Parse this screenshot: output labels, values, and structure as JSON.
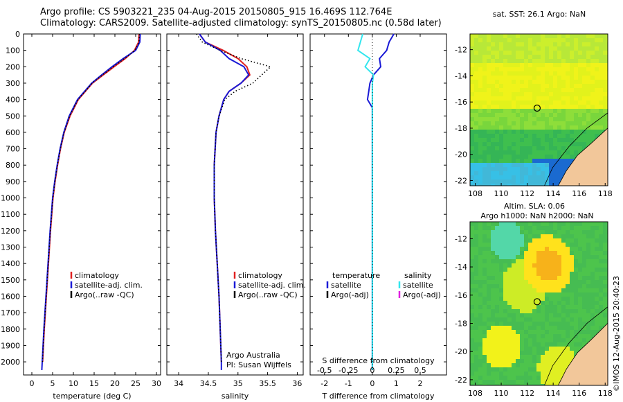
{
  "header": {
    "line1": "Argo profile: CS 5903221_235 04-Aug-2015 20150805_915 16.469S 112.764E",
    "line2": "Climatology: CARS2009. Satellite-adjusted climatology: synTS_20150805.nc (0.58d later)"
  },
  "stamp": "©IMOS 12-Aug-2015 20:40:23",
  "colors": {
    "climatology": "#e02020",
    "satellite": "#1a1ad6",
    "argo": "#000000",
    "salinity_satellite": "#33e6ee",
    "salinity_argo": "#e020e0",
    "land": "#f2c79a"
  },
  "chart_data": [
    {
      "type": "line",
      "panel": "temperature",
      "xlabel": "temperature (deg C)",
      "ylabel": "",
      "xlim": [
        -2,
        31
      ],
      "ylim": [
        2080,
        0
      ],
      "xticks": [
        0,
        5,
        10,
        15,
        20,
        25,
        30
      ],
      "yticks": [
        0,
        100,
        200,
        300,
        400,
        500,
        600,
        700,
        800,
        900,
        1000,
        1100,
        1200,
        1300,
        1400,
        1500,
        1600,
        1700,
        1800,
        1900,
        2000
      ],
      "legend": [
        "climatology",
        "satellite-adj. clim.",
        "Argo(..raw -QC)"
      ],
      "legend_position": "lower-right",
      "series": [
        {
          "name": "climatology",
          "color": "#e02020",
          "depth": [
            0,
            50,
            100,
            150,
            200,
            250,
            300,
            400,
            500,
            600,
            700,
            800,
            900,
            1000,
            1200,
            1400,
            1600,
            1800,
            2000
          ],
          "values": [
            25.8,
            25.7,
            24.7,
            22.5,
            19.8,
            17.2,
            14.6,
            11.2,
            9.2,
            7.8,
            6.9,
            6.2,
            5.6,
            5.1,
            4.5,
            4.0,
            3.5,
            3.0,
            2.6
          ]
        },
        {
          "name": "satellite-adj. clim.",
          "color": "#1a1ad6",
          "depth": [
            0,
            50,
            100,
            150,
            200,
            250,
            300,
            400,
            500,
            600,
            700,
            800,
            900,
            1000,
            1200,
            1400,
            1600,
            1800,
            2000,
            2050
          ],
          "values": [
            26.1,
            26.0,
            25.0,
            22.0,
            19.3,
            16.8,
            14.4,
            11.0,
            9.0,
            7.7,
            6.8,
            6.1,
            5.5,
            5.0,
            4.4,
            3.9,
            3.4,
            2.9,
            2.5,
            2.4
          ]
        },
        {
          "name": "Argo(..raw -QC)",
          "color": "#000000",
          "depth": [
            0,
            50,
            100,
            150,
            200,
            250,
            300,
            400,
            500,
            600,
            700,
            800,
            900,
            1000,
            1200,
            1400,
            1600,
            1800,
            2000
          ],
          "values": [
            25.9,
            25.8,
            24.8,
            22.3,
            19.6,
            17.0,
            14.5,
            11.1,
            9.1,
            7.75,
            6.85,
            6.15,
            5.55,
            5.05,
            4.45,
            3.95,
            3.45,
            2.95,
            2.55
          ]
        }
      ]
    },
    {
      "type": "line",
      "panel": "salinity",
      "xlabel": "salinity",
      "ylabel": "",
      "xlim": [
        33.8,
        36.1
      ],
      "ylim": [
        2080,
        0
      ],
      "xticks": [
        34,
        34.5,
        35,
        35.5,
        36
      ],
      "legend": [
        "climatology",
        "satellite-adj. clim.",
        "Argo(..raw -QC)"
      ],
      "legend_position": "lower-right",
      "annotation": [
        "Argo Australia",
        "PI: Susan Wijffels"
      ],
      "series": [
        {
          "name": "climatology",
          "color": "#e02020",
          "depth": [
            0,
            50,
            100,
            150,
            200,
            250,
            300,
            350,
            400,
            500,
            600,
            800,
            1000,
            1200,
            1400,
            1600,
            1800,
            2000
          ],
          "values": [
            34.35,
            34.45,
            34.75,
            35.0,
            35.15,
            35.2,
            35.05,
            34.85,
            34.76,
            34.68,
            34.63,
            34.6,
            34.6,
            34.62,
            34.65,
            34.68,
            34.7,
            34.72
          ]
        },
        {
          "name": "satellite-adj. clim.",
          "color": "#1a1ad6",
          "depth": [
            0,
            50,
            100,
            150,
            200,
            250,
            300,
            350,
            400,
            500,
            600,
            800,
            1000,
            1200,
            1400,
            1600,
            1800,
            2000,
            2050
          ],
          "values": [
            34.35,
            34.45,
            34.7,
            34.85,
            35.1,
            35.18,
            35.05,
            34.85,
            34.76,
            34.68,
            34.63,
            34.6,
            34.6,
            34.62,
            34.65,
            34.68,
            34.7,
            34.72,
            34.72
          ]
        },
        {
          "name": "Argo(..raw -QC)",
          "color": "#000000",
          "depth": [
            0,
            50,
            100,
            150,
            200,
            250,
            300,
            350,
            400,
            500,
            600,
            800,
            1000,
            1200,
            1400,
            1600,
            1800,
            2000
          ],
          "values": [
            34.3,
            34.4,
            34.7,
            35.05,
            35.55,
            35.4,
            35.25,
            34.95,
            34.78,
            34.68,
            34.63,
            34.6,
            34.6,
            34.62,
            34.65,
            34.68,
            34.7,
            34.72
          ]
        }
      ]
    },
    {
      "type": "line",
      "panel": "difference",
      "xlabel": "T difference from climatology",
      "xlabel_top": "S difference from climatology",
      "xlim": [
        -2.6,
        3.1
      ],
      "ylim": [
        2080,
        0
      ],
      "xticks": [
        -2,
        -1,
        0,
        1,
        2
      ],
      "xticks_top_labels": [
        "-0.5",
        "-0.25",
        "0",
        "0.25",
        "0.5"
      ],
      "xticks_top_pos": [
        -2,
        -1,
        0,
        1,
        2
      ],
      "legend_temperature": [
        "temperature",
        "satellite",
        "Argo(-adj)"
      ],
      "legend_salinity": [
        "salinity",
        "satellite",
        "Argo(-adj)"
      ],
      "series": [
        {
          "name": "temperature satellite",
          "color": "#1a1ad6",
          "depth": [
            0,
            50,
            100,
            150,
            200,
            250,
            300,
            350,
            400,
            450,
            500,
            600,
            800,
            1000,
            1400,
            1800,
            2050
          ],
          "values": [
            0.9,
            0.7,
            0.6,
            0.3,
            0.35,
            0.05,
            -0.1,
            -0.15,
            -0.2,
            0.0,
            0.0,
            0.0,
            0.0,
            0.0,
            0.0,
            0.0,
            0.0
          ]
        },
        {
          "name": "salinity satellite",
          "color": "#33e6ee",
          "depth": [
            0,
            50,
            100,
            150,
            200,
            250,
            300,
            400,
            600,
            1000,
            1400,
            1800,
            2050
          ],
          "values": [
            -0.4,
            -0.5,
            -0.6,
            -0.1,
            -0.3,
            0.05,
            0.0,
            0.0,
            0.0,
            0.0,
            0.0,
            0.0,
            0.0
          ]
        }
      ]
    },
    {
      "type": "heatmap",
      "panel": "sst-map",
      "title": "sat. SST: 26.1  Argo: NaN",
      "xlim": [
        107.6,
        118.2
      ],
      "ylim": [
        -22.4,
        -10.8
      ],
      "xticks": [
        108,
        110,
        112,
        114,
        116,
        118
      ],
      "yticks": [
        -12,
        -14,
        -16,
        -18,
        -20,
        -22
      ],
      "marker": {
        "lon": 112.764,
        "lat": -16.469
      }
    },
    {
      "type": "heatmap",
      "panel": "sla-map",
      "title_lines": [
        "Altim. SLA: 0.06",
        "Argo h1000: NaN h2000: NaN"
      ],
      "xlim": [
        107.6,
        118.2
      ],
      "ylim": [
        -22.4,
        -10.8
      ],
      "xticks": [
        108,
        110,
        112,
        114,
        116,
        118
      ],
      "yticks": [
        -12,
        -14,
        -16,
        -18,
        -20,
        -22
      ],
      "marker": {
        "lon": 112.764,
        "lat": -16.469
      }
    }
  ]
}
